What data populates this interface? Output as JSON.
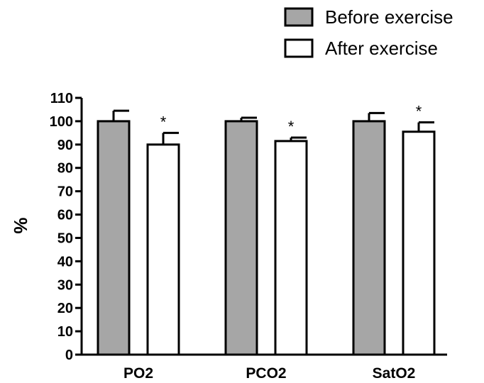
{
  "chart_data": {
    "type": "bar",
    "categories": [
      "PO2",
      "PCO2",
      "SatO2"
    ],
    "series": [
      {
        "name": "Before exercise",
        "values": [
          100,
          100,
          100
        ],
        "errors": [
          4.5,
          1.5,
          3.5
        ],
        "color": "#a6a6a6"
      },
      {
        "name": "After exercise",
        "values": [
          90,
          91.5,
          95.5
        ],
        "errors": [
          5,
          1.5,
          4
        ],
        "color": "#ffffff"
      }
    ],
    "annotations": [
      "*",
      "*",
      "*"
    ],
    "ylabel": "%",
    "ylim": [
      0,
      110
    ],
    "yticks": [
      0,
      10,
      20,
      30,
      40,
      50,
      60,
      70,
      80,
      90,
      100,
      110
    ],
    "legend_position": "top-right",
    "grid": false
  }
}
